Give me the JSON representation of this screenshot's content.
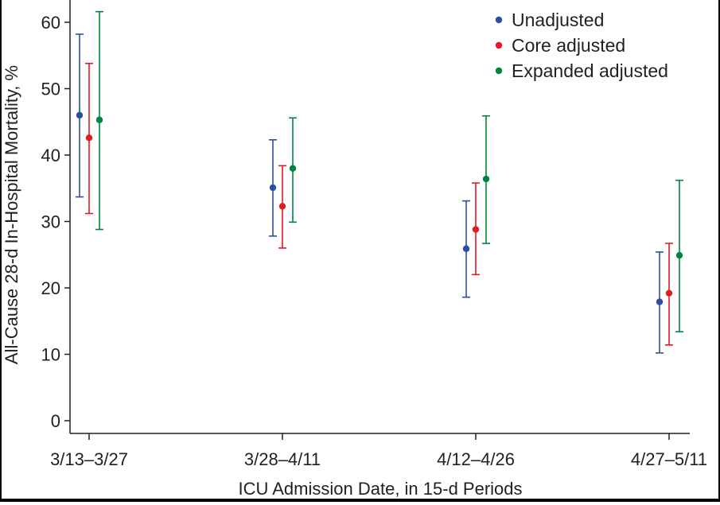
{
  "chart_data": {
    "type": "scatter",
    "title": "",
    "xlabel": "ICU Admission Date, in 15-d Periods",
    "ylabel": "All-Cause 28-d In-Hospital Mortality, %",
    "ylim": [
      0,
      63
    ],
    "yticks": [
      0,
      10,
      20,
      30,
      40,
      50,
      60
    ],
    "categories": [
      "3/13–3/27",
      "3/28–4/11",
      "4/12–4/26",
      "4/27–5/11"
    ],
    "legend_position": "top-right",
    "grid": false,
    "series": [
      {
        "name": "Unadjusted",
        "color": "#2b4fa0",
        "values": [
          46.0,
          35.1,
          25.9,
          17.9
        ],
        "lower": [
          33.7,
          27.8,
          18.6,
          10.2
        ],
        "upper": [
          58.2,
          42.3,
          33.1,
          25.4
        ]
      },
      {
        "name": "Core adjusted",
        "color": "#e31b23",
        "values": [
          42.6,
          32.3,
          28.8,
          19.2
        ],
        "lower": [
          31.2,
          26.0,
          22.0,
          11.4
        ],
        "upper": [
          53.8,
          38.4,
          35.8,
          26.7
        ]
      },
      {
        "name": "Expanded adjusted",
        "color": "#00853f",
        "values": [
          45.3,
          38.0,
          36.4,
          24.9
        ],
        "lower": [
          28.8,
          29.9,
          26.7,
          13.4
        ],
        "upper": [
          61.6,
          45.6,
          45.9,
          36.2
        ]
      }
    ]
  }
}
